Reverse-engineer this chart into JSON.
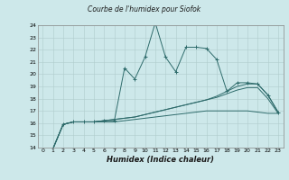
{
  "title": "Courbe de l'humidex pour Siofok",
  "xlabel": "Humidex (Indice chaleur)",
  "ylabel": "",
  "bg_color": "#cde8ea",
  "grid_color": "#b0cccc",
  "line_color": "#2e6b6b",
  "xlim": [
    -0.5,
    23.5
  ],
  "ylim": [
    14,
    24
  ],
  "yticks": [
    14,
    15,
    16,
    17,
    18,
    19,
    20,
    21,
    22,
    23,
    24
  ],
  "xticks": [
    0,
    1,
    2,
    3,
    4,
    5,
    6,
    7,
    8,
    9,
    10,
    11,
    12,
    13,
    14,
    15,
    16,
    17,
    18,
    19,
    20,
    21,
    22,
    23
  ],
  "series": [
    {
      "x": [
        0,
        1,
        2,
        3,
        4,
        5,
        6,
        7,
        8,
        9,
        10,
        11,
        12,
        13,
        14,
        15,
        16,
        17,
        18,
        19,
        20,
        21,
        22,
        23
      ],
      "y": [
        13.8,
        13.9,
        15.9,
        16.1,
        16.1,
        16.1,
        16.2,
        16.2,
        20.5,
        19.6,
        21.4,
        24.2,
        21.4,
        20.2,
        22.2,
        22.2,
        22.1,
        21.2,
        18.6,
        19.3,
        19.3,
        19.2,
        18.3,
        16.9
      ],
      "marker": "+"
    },
    {
      "x": [
        0,
        1,
        2,
        3,
        4,
        5,
        6,
        7,
        8,
        9,
        10,
        11,
        12,
        13,
        14,
        15,
        16,
        17,
        18,
        19,
        20,
        21,
        22,
        23
      ],
      "y": [
        13.8,
        13.9,
        15.9,
        16.1,
        16.1,
        16.1,
        16.2,
        16.3,
        16.4,
        16.5,
        16.7,
        16.9,
        17.1,
        17.3,
        17.5,
        17.7,
        17.9,
        18.2,
        18.6,
        19.0,
        19.2,
        19.2,
        18.3,
        16.9
      ],
      "marker": null
    },
    {
      "x": [
        0,
        1,
        2,
        3,
        4,
        5,
        6,
        7,
        8,
        9,
        10,
        11,
        12,
        13,
        14,
        15,
        16,
        17,
        18,
        19,
        20,
        21,
        22,
        23
      ],
      "y": [
        13.8,
        13.9,
        15.9,
        16.1,
        16.1,
        16.1,
        16.2,
        16.3,
        16.4,
        16.5,
        16.7,
        16.9,
        17.1,
        17.3,
        17.5,
        17.7,
        17.9,
        18.1,
        18.4,
        18.7,
        18.9,
        18.9,
        18.0,
        16.8
      ],
      "marker": null
    },
    {
      "x": [
        0,
        1,
        2,
        3,
        4,
        5,
        6,
        7,
        8,
        9,
        10,
        11,
        12,
        13,
        14,
        15,
        16,
        17,
        18,
        19,
        20,
        21,
        22,
        23
      ],
      "y": [
        13.8,
        13.9,
        15.9,
        16.1,
        16.1,
        16.1,
        16.1,
        16.1,
        16.2,
        16.3,
        16.4,
        16.5,
        16.6,
        16.7,
        16.8,
        16.9,
        17.0,
        17.0,
        17.0,
        17.0,
        17.0,
        16.9,
        16.8,
        16.8
      ],
      "marker": null
    }
  ]
}
